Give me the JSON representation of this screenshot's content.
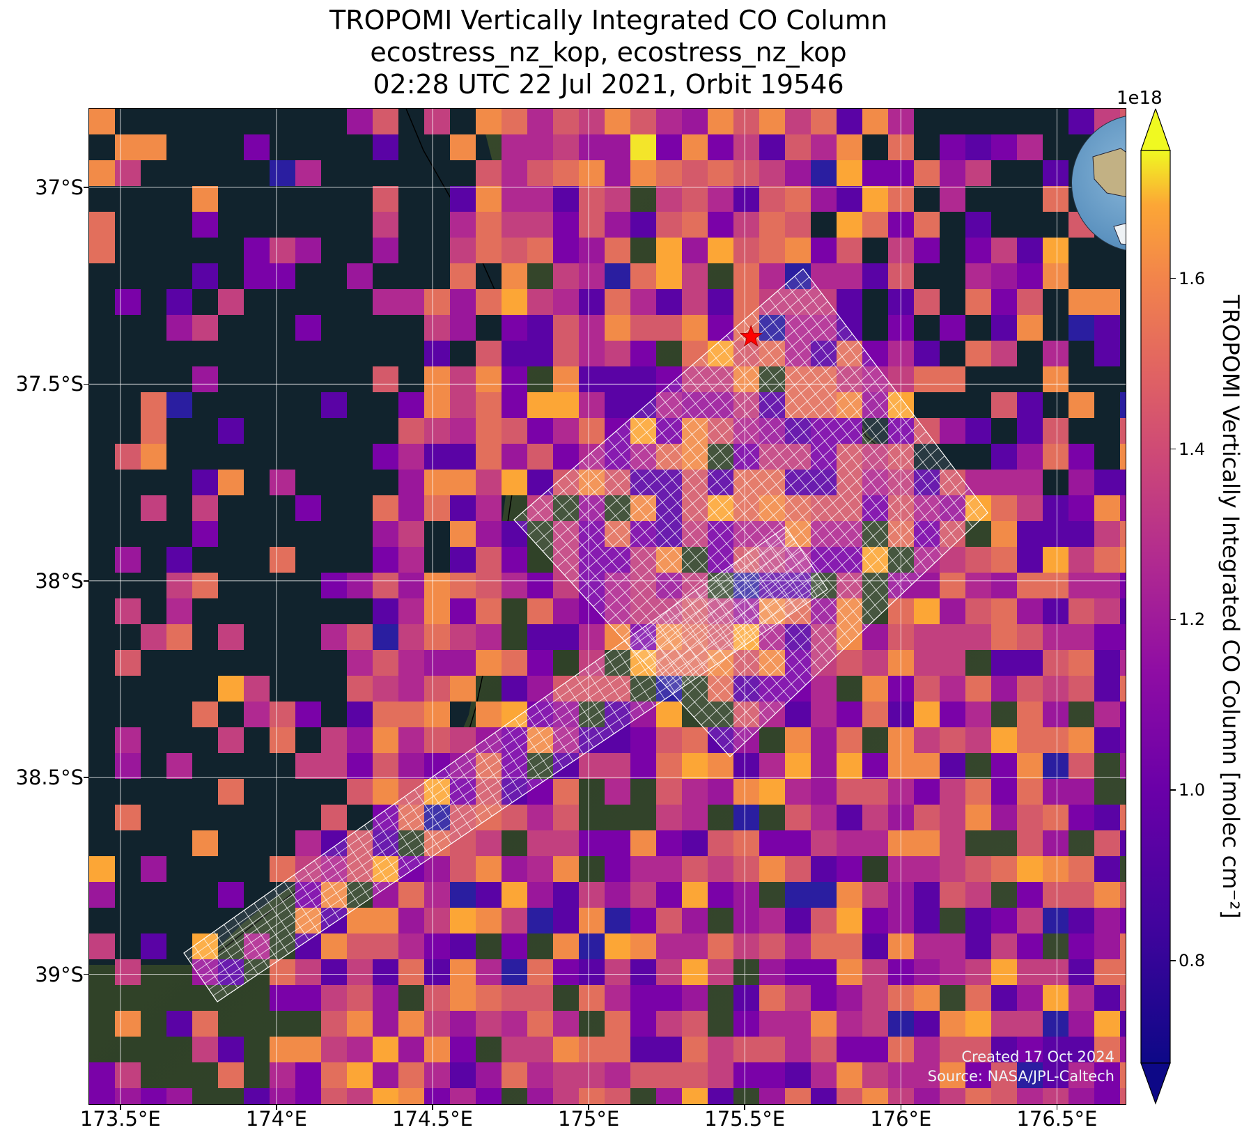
{
  "title": {
    "line1": "TROPOMI Vertically Integrated CO Column",
    "line2": "ecostress_nz_kop, ecostress_nz_kop",
    "line3": "02:28 UTC 22 Jul 2021, Orbit 19546"
  },
  "axes": {
    "x_ticks": [
      "173.5°E",
      "174°E",
      "174.5°E",
      "175°E",
      "175.5°E",
      "176°E",
      "176.5°E"
    ],
    "x_values": [
      173.5,
      174.0,
      174.5,
      175.0,
      175.5,
      176.0,
      176.5
    ],
    "y_ticks": [
      "37°S",
      "37.5°S",
      "38°S",
      "38.5°S",
      "39°S"
    ],
    "y_values": [
      -37.0,
      -37.5,
      -38.0,
      -38.5,
      -39.0
    ],
    "lon_range": [
      173.4,
      176.72
    ],
    "lat_range": [
      -36.8,
      -39.33
    ]
  },
  "colorbar": {
    "multiplier": "1e18",
    "label": "TROPOMI Vertically Integrated CO Column [molec cm⁻²]",
    "tick_labels": [
      "0.8",
      "1.0",
      "1.2",
      "1.4",
      "1.6"
    ],
    "ticks": [
      0.8,
      1.0,
      1.2,
      1.4,
      1.6
    ],
    "range": [
      0.68,
      1.75
    ],
    "extend": "both",
    "colormap": "plasma"
  },
  "credit": {
    "created": "Created 17 Oct 2024",
    "source": "Source: NASA/JPL-Caltech"
  },
  "target": {
    "marker": "red-star",
    "lon": 175.52,
    "lat": -37.38
  },
  "colors": {
    "grid": "#ffffff",
    "ocean": "#11232d",
    "target": "#ff0000",
    "footprint": "#ffffff",
    "coast": "#000000"
  }
}
